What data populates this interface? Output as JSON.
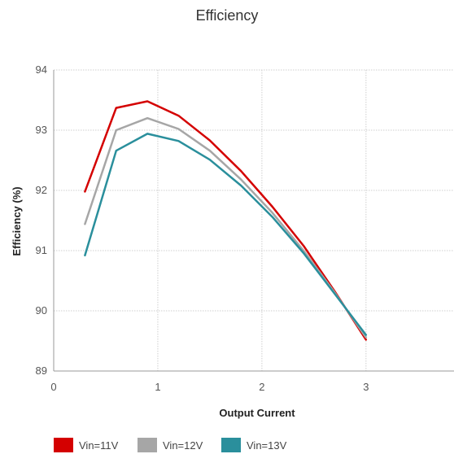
{
  "chart_data": {
    "type": "line",
    "title": "Efficiency",
    "xlabel": "Output Current",
    "ylabel": "Efficiency (%)",
    "xlim": [
      0,
      3.9
    ],
    "ylim": [
      89,
      94
    ],
    "xticks": [
      "0",
      "1",
      "2",
      "3"
    ],
    "yticks": [
      "89",
      "90",
      "91",
      "92",
      "93",
      "94"
    ],
    "grid": true,
    "legend_position": "bottom-left",
    "x": [
      0.3,
      0.6,
      0.9,
      1.2,
      1.5,
      1.8,
      2.1,
      2.4,
      2.7,
      3.0
    ],
    "series": [
      {
        "name": "Vin=11V",
        "color": "#d40000",
        "values": [
          91.98,
          93.37,
          93.48,
          93.24,
          92.83,
          92.32,
          91.73,
          91.08,
          90.32,
          89.52
        ]
      },
      {
        "name": "Vin=12V",
        "color": "#a6a6a6",
        "values": [
          91.44,
          93.0,
          93.2,
          93.02,
          92.66,
          92.18,
          91.63,
          91.0,
          90.3,
          89.56
        ]
      },
      {
        "name": "Vin=13V",
        "color": "#2a8f9c",
        "values": [
          90.92,
          92.66,
          92.94,
          92.82,
          92.51,
          92.08,
          91.56,
          90.96,
          90.28,
          89.6
        ]
      }
    ]
  }
}
